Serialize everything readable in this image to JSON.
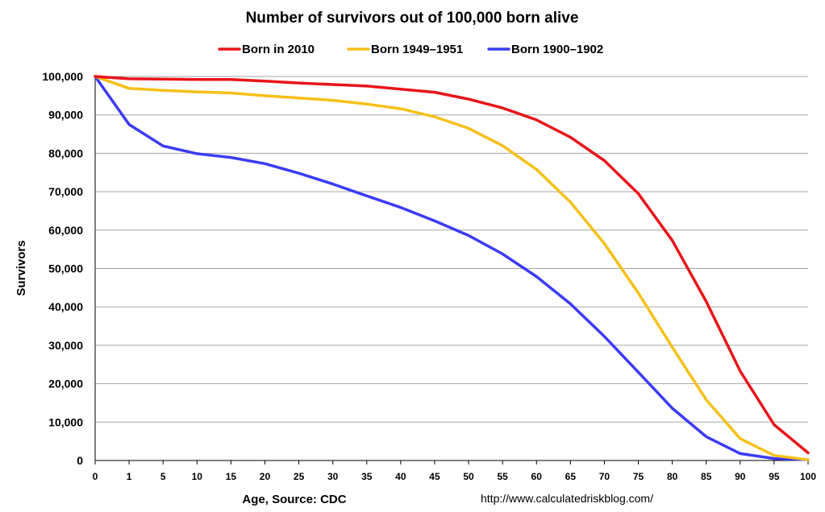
{
  "chart_data": {
    "type": "line",
    "title": "Number of survivors out of 100,000 born alive",
    "xlabel": "Age, Source: CDC",
    "ylabel": "Survivors",
    "source_url": "http://www.calculatedriskblog.com/",
    "categories": [
      "0",
      "1",
      "5",
      "10",
      "15",
      "20",
      "25",
      "30",
      "35",
      "40",
      "45",
      "50",
      "55",
      "60",
      "65",
      "70",
      "75",
      "80",
      "85",
      "90",
      "95",
      "100"
    ],
    "y_ticks": [
      "0",
      "10,000",
      "20,000",
      "30,000",
      "40,000",
      "50,000",
      "60,000",
      "70,000",
      "80,000",
      "90,000",
      "100,000"
    ],
    "ylim": [
      0,
      100000
    ],
    "grid": true,
    "legend_position": "top",
    "series": [
      {
        "name": "Born in 2010",
        "color": "#e8141a",
        "values": [
          100000,
          99400,
          99300,
          99200,
          99200,
          98800,
          98300,
          97900,
          97500,
          96700,
          95900,
          94100,
          91800,
          88700,
          84200,
          78100,
          69500,
          57300,
          41400,
          23300,
          9300,
          2000
        ]
      },
      {
        "name": "Born 1949–1951",
        "color": "#f5c018",
        "values": [
          100000,
          96900,
          96400,
          96000,
          95700,
          95000,
          94400,
          93800,
          92800,
          91600,
          89500,
          86500,
          82000,
          75800,
          67300,
          56500,
          43600,
          29500,
          15800,
          5700,
          1300,
          200
        ]
      },
      {
        "name": "Born 1900–1902",
        "color": "#3b3bf5",
        "values": [
          100000,
          87500,
          81900,
          79900,
          78900,
          77300,
          74800,
          72000,
          68900,
          65900,
          62400,
          58600,
          53800,
          47900,
          40800,
          32300,
          23000,
          13600,
          6200,
          1800,
          500,
          200
        ]
      }
    ]
  }
}
